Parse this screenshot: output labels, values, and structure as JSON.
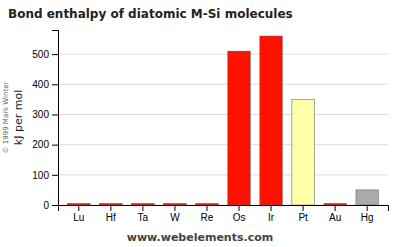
{
  "chart_data": {
    "type": "bar",
    "title": "Bond enthalpy of diatomic M-Si molecules",
    "ylabel": "kJ per mol",
    "annotations": [
      "www.webelements.com",
      "© 1999 Mark Winter"
    ],
    "categories": [
      "Lu",
      "Hf",
      "Ta",
      "W",
      "Re",
      "Os",
      "Ir",
      "Pt",
      "Au",
      "Hg"
    ],
    "values": [
      5,
      5,
      5,
      5,
      5,
      510,
      560,
      350,
      5,
      50
    ],
    "colors": [
      "#FF1100",
      "#FF1100",
      "#FF1100",
      "#FF1100",
      "#FF1100",
      "#FF1100",
      "#FF1100",
      "#FFFFAA",
      "#FF1100",
      "#AAAAAA"
    ],
    "ylim": [
      0,
      580
    ],
    "yticks": [
      0,
      100,
      200,
      300,
      400,
      500
    ],
    "grid": true
  }
}
